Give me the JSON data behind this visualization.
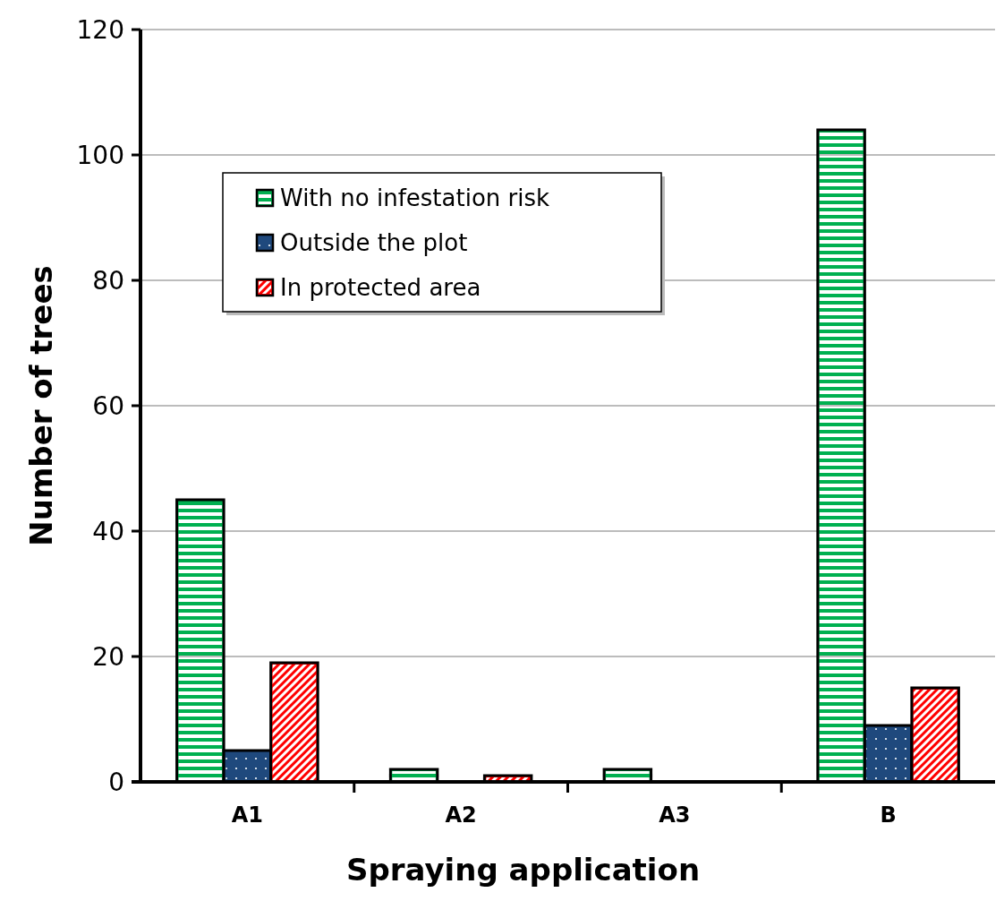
{
  "chart_data": {
    "type": "bar",
    "xlabel": "Spraying application",
    "ylabel": "Number of trees",
    "categories": [
      "A1",
      "A2",
      "A3",
      "B"
    ],
    "series": [
      {
        "name": "With no infestation risk",
        "color": "#00b050",
        "values": [
          45,
          2,
          2,
          104
        ]
      },
      {
        "name": "Outside the plot",
        "color": "#1f497d",
        "values": [
          5,
          0,
          0,
          9
        ]
      },
      {
        "name": "In protected area",
        "color": "#ff0000",
        "values": [
          19,
          1,
          0,
          15
        ]
      }
    ],
    "ylim": [
      0,
      120
    ],
    "yticks": [
      0,
      20,
      40,
      60,
      80,
      100,
      120
    ],
    "grid": "y",
    "legend": "top left"
  }
}
